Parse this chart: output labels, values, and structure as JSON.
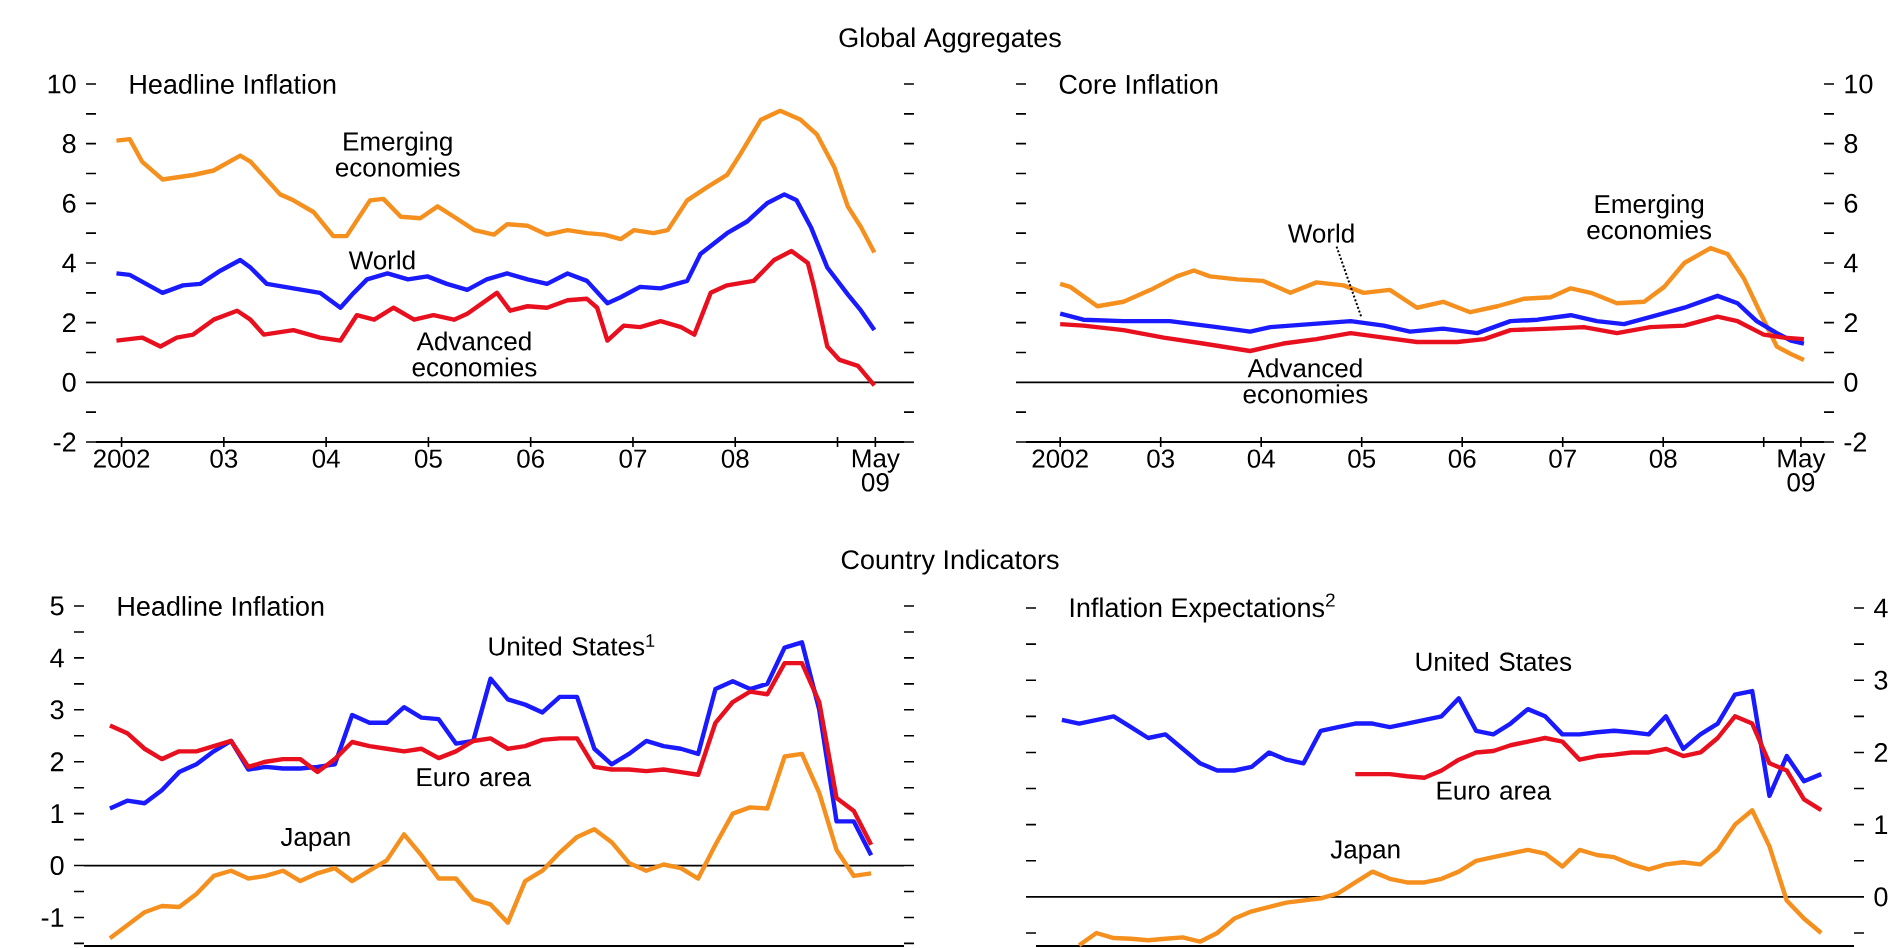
{
  "chart_data": [
    {
      "type": "line",
      "title": "Global Aggregates",
      "subtitle": "Headline Inflation",
      "xlim": [
        2001.75,
        2009.65
      ],
      "ylim": [
        -2,
        10
      ],
      "xticks": [
        {
          "value": 2002,
          "label": "2002"
        },
        {
          "value": 2003,
          "label": "03"
        },
        {
          "value": 2004,
          "label": "04"
        },
        {
          "value": 2005,
          "label": "05"
        },
        {
          "value": 2006,
          "label": "06"
        },
        {
          "value": 2007,
          "label": "07"
        },
        {
          "value": 2008,
          "label": "08"
        },
        {
          "value": 2009,
          "label": null
        },
        {
          "value": 2009.37,
          "label": "May 09"
        }
      ],
      "yticks": [
        -2,
        {
          "value": -1,
          "label": null
        },
        0,
        {
          "value": 1,
          "label": null
        },
        2,
        {
          "value": 3,
          "label": null
        },
        4,
        {
          "value": 5,
          "label": null
        },
        6,
        {
          "value": 7,
          "label": null
        },
        8,
        {
          "value": 9,
          "label": null
        },
        10
      ],
      "ref_lines": [
        {
          "axis": "y",
          "value": 0
        }
      ],
      "series": [
        {
          "name": "Emerging economies",
          "color": "#f5901e",
          "x": [
            2001.95,
            2002.08,
            2002.2,
            2002.4,
            2002.7,
            2002.9,
            2003.16,
            2003.26,
            2003.55,
            2003.68,
            2003.88,
            2004.07,
            2004.2,
            2004.43,
            2004.56,
            2004.73,
            2004.92,
            2005.09,
            2005.25,
            2005.45,
            2005.64,
            2005.77,
            2005.97,
            2006.16,
            2006.36,
            2006.55,
            2006.72,
            2006.88,
            2007.01,
            2007.2,
            2007.34,
            2007.53,
            2007.73,
            2007.92,
            2008.05,
            2008.25,
            2008.44,
            2008.64,
            2008.8,
            2008.97,
            2009.1,
            2009.23,
            2009.36
          ],
          "values": [
            8.1,
            8.15,
            7.4,
            6.8,
            6.95,
            7.1,
            7.6,
            7.4,
            6.3,
            6.1,
            5.7,
            4.9,
            4.9,
            6.1,
            6.15,
            5.55,
            5.5,
            5.9,
            5.55,
            5.1,
            4.95,
            5.3,
            5.25,
            4.95,
            5.1,
            5.0,
            4.95,
            4.8,
            5.1,
            5.0,
            5.1,
            6.1,
            6.55,
            6.95,
            7.65,
            8.8,
            9.1,
            8.8,
            8.3,
            7.2,
            5.9,
            5.2,
            4.35
          ]
        },
        {
          "name": "World",
          "color": "#1a1aff",
          "x": [
            2001.95,
            2002.08,
            2002.4,
            2002.6,
            2002.77,
            2002.97,
            2003.16,
            2003.26,
            2003.42,
            2003.68,
            2003.94,
            2004.14,
            2004.27,
            2004.4,
            2004.6,
            2004.8,
            2004.99,
            2005.18,
            2005.38,
            2005.57,
            2005.77,
            2005.97,
            2006.16,
            2006.36,
            2006.55,
            2006.75,
            2006.88,
            2007.07,
            2007.27,
            2007.53,
            2007.66,
            2007.92,
            2008.12,
            2008.31,
            2008.48,
            2008.6,
            2008.74,
            2008.9,
            2009.1,
            2009.23,
            2009.36
          ],
          "values": [
            3.65,
            3.6,
            3.0,
            3.25,
            3.3,
            3.75,
            4.1,
            3.85,
            3.3,
            3.15,
            3.0,
            2.5,
            3.0,
            3.45,
            3.65,
            3.45,
            3.55,
            3.3,
            3.1,
            3.45,
            3.65,
            3.45,
            3.3,
            3.65,
            3.4,
            2.65,
            2.85,
            3.2,
            3.15,
            3.4,
            4.3,
            5.0,
            5.4,
            6.0,
            6.3,
            6.1,
            5.2,
            3.85,
            2.95,
            2.4,
            1.75
          ]
        },
        {
          "name": "Advanced economies",
          "color": "#e8101e",
          "x": [
            2001.95,
            2002.2,
            2002.38,
            2002.54,
            2002.7,
            2002.9,
            2003.13,
            2003.26,
            2003.39,
            2003.68,
            2003.94,
            2004.14,
            2004.3,
            2004.47,
            2004.66,
            2004.86,
            2005.05,
            2005.25,
            2005.38,
            2005.67,
            2005.8,
            2005.97,
            2006.16,
            2006.36,
            2006.55,
            2006.65,
            2006.75,
            2006.91,
            2007.07,
            2007.27,
            2007.47,
            2007.6,
            2007.76,
            2007.92,
            2008.18,
            2008.38,
            2008.55,
            2008.71,
            2008.77,
            2008.9,
            2009.02,
            2009.2,
            2009.36
          ],
          "values": [
            1.4,
            1.5,
            1.2,
            1.5,
            1.6,
            2.1,
            2.4,
            2.1,
            1.6,
            1.75,
            1.5,
            1.4,
            2.25,
            2.1,
            2.5,
            2.1,
            2.25,
            2.1,
            2.3,
            3.0,
            2.4,
            2.55,
            2.5,
            2.75,
            2.8,
            2.5,
            1.4,
            1.9,
            1.85,
            2.05,
            1.85,
            1.6,
            3.0,
            3.25,
            3.4,
            4.1,
            4.4,
            4.0,
            3.2,
            1.2,
            0.75,
            0.55,
            -0.1
          ]
        }
      ]
    },
    {
      "type": "line",
      "subtitle": "Core Inflation",
      "xlim": [
        2001.66,
        2009.6
      ],
      "ylim": [
        -2,
        10
      ],
      "xticks": [
        {
          "value": 2002,
          "label": "2002"
        },
        {
          "value": 2003,
          "label": "03"
        },
        {
          "value": 2004,
          "label": "04"
        },
        {
          "value": 2005,
          "label": "05"
        },
        {
          "value": 2006,
          "label": "06"
        },
        {
          "value": 2007,
          "label": "07"
        },
        {
          "value": 2008,
          "label": "08"
        },
        {
          "value": 2009,
          "label": null
        },
        {
          "value": 2009.37,
          "label": "May 09"
        }
      ],
      "yticks": [
        -2,
        {
          "value": -1,
          "label": null
        },
        0,
        {
          "value": 1,
          "label": null
        },
        2,
        {
          "value": 3,
          "label": null
        },
        4,
        {
          "value": 5,
          "label": null
        },
        6,
        {
          "value": 7,
          "label": null
        },
        8,
        {
          "value": 9,
          "label": null
        },
        10
      ],
      "ref_lines": [
        {
          "axis": "y",
          "value": 0
        }
      ],
      "series": [
        {
          "name": "Emerging economies",
          "color": "#f5901e",
          "x": [
            2002.0,
            2002.1,
            2002.37,
            2002.63,
            2002.9,
            2003.16,
            2003.33,
            2003.49,
            2003.76,
            2004.02,
            2004.29,
            2004.55,
            2004.82,
            2005.02,
            2005.28,
            2005.55,
            2005.81,
            2006.08,
            2006.35,
            2006.61,
            2006.88,
            2007.08,
            2007.28,
            2007.54,
            2007.81,
            2008.01,
            2008.21,
            2008.47,
            2008.64,
            2008.8,
            2008.97,
            2009.13,
            2009.27,
            2009.4
          ],
          "values": [
            3.3,
            3.2,
            2.55,
            2.7,
            3.1,
            3.55,
            3.75,
            3.55,
            3.45,
            3.4,
            3.0,
            3.35,
            3.25,
            3.0,
            3.1,
            2.5,
            2.7,
            2.35,
            2.55,
            2.8,
            2.85,
            3.15,
            3.0,
            2.65,
            2.7,
            3.2,
            4.0,
            4.5,
            4.3,
            3.5,
            2.3,
            1.2,
            0.95,
            0.75
          ]
        },
        {
          "name": "World",
          "color": "#1a1aff",
          "x": [
            2002.0,
            2002.23,
            2002.63,
            2003.09,
            2003.56,
            2003.89,
            2004.09,
            2004.49,
            2004.89,
            2005.22,
            2005.48,
            2005.81,
            2006.15,
            2006.48,
            2006.75,
            2007.08,
            2007.34,
            2007.61,
            2007.94,
            2008.21,
            2008.54,
            2008.74,
            2008.93,
            2009.13,
            2009.27,
            2009.4
          ],
          "values": [
            2.3,
            2.1,
            2.05,
            2.05,
            1.85,
            1.7,
            1.85,
            1.95,
            2.05,
            1.9,
            1.7,
            1.8,
            1.65,
            2.05,
            2.1,
            2.25,
            2.05,
            1.95,
            2.25,
            2.5,
            2.9,
            2.65,
            2.05,
            1.65,
            1.4,
            1.3
          ]
        },
        {
          "name": "Advanced economies",
          "color": "#e8101e",
          "x": [
            2002.0,
            2002.23,
            2002.63,
            2003.03,
            2003.42,
            2003.89,
            2004.22,
            2004.55,
            2004.89,
            2005.22,
            2005.55,
            2005.95,
            2006.22,
            2006.48,
            2006.88,
            2007.21,
            2007.54,
            2007.87,
            2008.21,
            2008.54,
            2008.74,
            2009.0,
            2009.2,
            2009.4
          ],
          "values": [
            1.95,
            1.9,
            1.75,
            1.5,
            1.3,
            1.05,
            1.3,
            1.45,
            1.65,
            1.5,
            1.35,
            1.35,
            1.45,
            1.75,
            1.8,
            1.85,
            1.65,
            1.85,
            1.9,
            2.2,
            2.05,
            1.6,
            1.5,
            1.45
          ]
        }
      ]
    },
    {
      "type": "line",
      "title": "Country Indicators",
      "subtitle": "Headline Inflation",
      "categories": [
        null,
        null,
        null,
        null,
        null,
        null,
        null,
        null,
        null,
        null,
        null,
        null,
        null,
        null,
        null,
        null,
        null,
        null,
        null,
        null,
        null,
        null,
        null,
        null,
        null,
        null,
        null,
        null,
        null,
        null,
        null,
        null,
        null,
        null,
        null,
        null,
        null,
        null,
        null,
        null,
        null,
        null,
        null,
        null,
        null
      ],
      "ylim": [
        -1.55,
        5
      ],
      "tick_labels": "y",
      "yticks": [
        {
          "value": -1.5,
          "label": null
        },
        -1,
        {
          "value": -0.5,
          "label": null
        },
        0,
        {
          "value": 0.5,
          "label": null
        },
        1,
        {
          "value": 1.5,
          "label": null
        },
        2,
        {
          "value": 2.5,
          "label": null
        },
        3,
        {
          "value": 3.5,
          "label": null
        },
        4,
        {
          "value": 4.5,
          "label": null
        },
        5
      ],
      "ref_lines": [
        {
          "axis": "y",
          "value": 0
        }
      ],
      "series": [
        {
          "name": "United States$^{1}$",
          "color": "#1a1aff",
          "values": [
            1.1,
            1.25,
            1.2,
            1.45,
            1.8,
            1.95,
            2.2,
            2.4,
            1.85,
            1.9,
            1.87,
            1.87,
            1.9,
            1.95,
            2.9,
            2.75,
            2.75,
            3.05,
            2.85,
            2.82,
            2.35,
            2.4,
            3.6,
            3.2,
            3.1,
            2.95,
            3.25,
            3.25,
            2.25,
            1.95,
            2.15,
            2.4,
            2.3,
            2.25,
            2.15,
            3.4,
            3.55,
            3.4,
            3.5,
            4.2,
            4.3,
            3.0,
            0.85,
            0.85,
            0.2
          ]
        },
        {
          "name": "Euro area",
          "color": "#e8101e",
          "values": [
            2.7,
            2.55,
            2.25,
            2.05,
            2.2,
            2.2,
            2.3,
            2.4,
            1.9,
            2.0,
            2.05,
            2.05,
            1.8,
            2.05,
            2.38,
            2.3,
            2.25,
            2.2,
            2.25,
            2.07,
            2.2,
            2.4,
            2.45,
            2.25,
            2.3,
            2.42,
            2.45,
            2.45,
            1.9,
            1.85,
            1.85,
            1.82,
            1.85,
            1.8,
            1.75,
            2.75,
            3.15,
            3.35,
            3.3,
            3.9,
            3.9,
            3.15,
            1.3,
            1.05,
            0.4
          ]
        },
        {
          "name": "Japan",
          "color": "#f5901e",
          "values": [
            -1.4,
            -1.15,
            -0.9,
            -0.78,
            -0.8,
            -0.55,
            -0.2,
            -0.1,
            -0.25,
            -0.2,
            -0.1,
            -0.3,
            -0.15,
            -0.05,
            -0.3,
            -0.1,
            0.1,
            0.6,
            0.2,
            -0.25,
            -0.25,
            -0.65,
            -0.75,
            -1.1,
            -0.3,
            -0.1,
            0.25,
            0.55,
            0.7,
            0.45,
            0.05,
            -0.1,
            0.02,
            -0.05,
            -0.25,
            0.4,
            1.0,
            1.12,
            1.1,
            2.1,
            2.15,
            1.4,
            0.3,
            -0.2,
            -0.15
          ]
        }
      ]
    },
    {
      "type": "line",
      "subtitle": "Inflation Expectations$^{2}$",
      "categories": [
        null,
        null,
        null,
        null,
        null,
        null,
        null,
        null,
        null,
        null,
        null,
        null,
        null,
        null,
        null,
        null,
        null,
        null,
        null,
        null,
        null,
        null,
        null,
        null,
        null,
        null,
        null,
        null,
        null,
        null,
        null,
        null,
        null,
        null,
        null,
        null,
        null,
        null,
        null,
        null,
        null,
        null,
        null,
        null,
        null
      ],
      "ylim": [
        -0.68,
        4
      ],
      "tick_labels": "y",
      "yticks": [
        {
          "value": -0.5,
          "label": null
        },
        0,
        {
          "value": 0.5,
          "label": null
        },
        1,
        {
          "value": 1.5,
          "label": null
        },
        2,
        {
          "value": 2.5,
          "label": null
        },
        3,
        {
          "value": 3.5,
          "label": null
        },
        4
      ],
      "ref_lines": [
        {
          "axis": "y",
          "value": 0
        }
      ],
      "series": [
        {
          "name": "United States",
          "color": "#1a1aff",
          "values": [
            2.45,
            2.4,
            2.45,
            2.5,
            2.35,
            2.2,
            2.25,
            2.05,
            1.85,
            1.75,
            1.75,
            1.8,
            2.0,
            1.9,
            1.85,
            2.3,
            2.35,
            2.4,
            2.4,
            2.35,
            2.4,
            2.45,
            2.5,
            2.75,
            2.3,
            2.25,
            2.4,
            2.6,
            2.5,
            2.25,
            2.25,
            2.28,
            2.3,
            2.28,
            2.25,
            2.5,
            2.05,
            2.25,
            2.4,
            2.8,
            2.85,
            1.4,
            1.95,
            1.6,
            1.7
          ]
        },
        {
          "name": "Euro area",
          "color": "#e8101e",
          "values": [
            null,
            null,
            null,
            null,
            null,
            null,
            null,
            null,
            null,
            null,
            null,
            null,
            null,
            null,
            null,
            null,
            null,
            1.7,
            1.7,
            1.7,
            1.67,
            1.65,
            1.75,
            1.9,
            2.0,
            2.02,
            2.1,
            2.15,
            2.2,
            2.15,
            1.9,
            1.95,
            1.97,
            2.0,
            2.0,
            2.05,
            1.95,
            2.0,
            2.2,
            2.5,
            2.4,
            1.85,
            1.75,
            1.35,
            1.2
          ]
        },
        {
          "name": "Japan",
          "color": "#f5901e",
          "values": [
            null,
            -0.67,
            -0.5,
            -0.57,
            -0.58,
            -0.6,
            -0.58,
            -0.56,
            -0.62,
            -0.5,
            -0.3,
            -0.2,
            -0.14,
            -0.08,
            -0.05,
            -0.02,
            0.05,
            0.2,
            0.35,
            0.25,
            0.2,
            0.2,
            0.25,
            0.35,
            0.5,
            0.55,
            0.6,
            0.65,
            0.6,
            0.42,
            0.65,
            0.58,
            0.55,
            0.45,
            0.38,
            0.45,
            0.48,
            0.45,
            0.65,
            1.0,
            1.2,
            0.7,
            -0.05,
            -0.3,
            -0.5
          ]
        }
      ]
    }
  ]
}
